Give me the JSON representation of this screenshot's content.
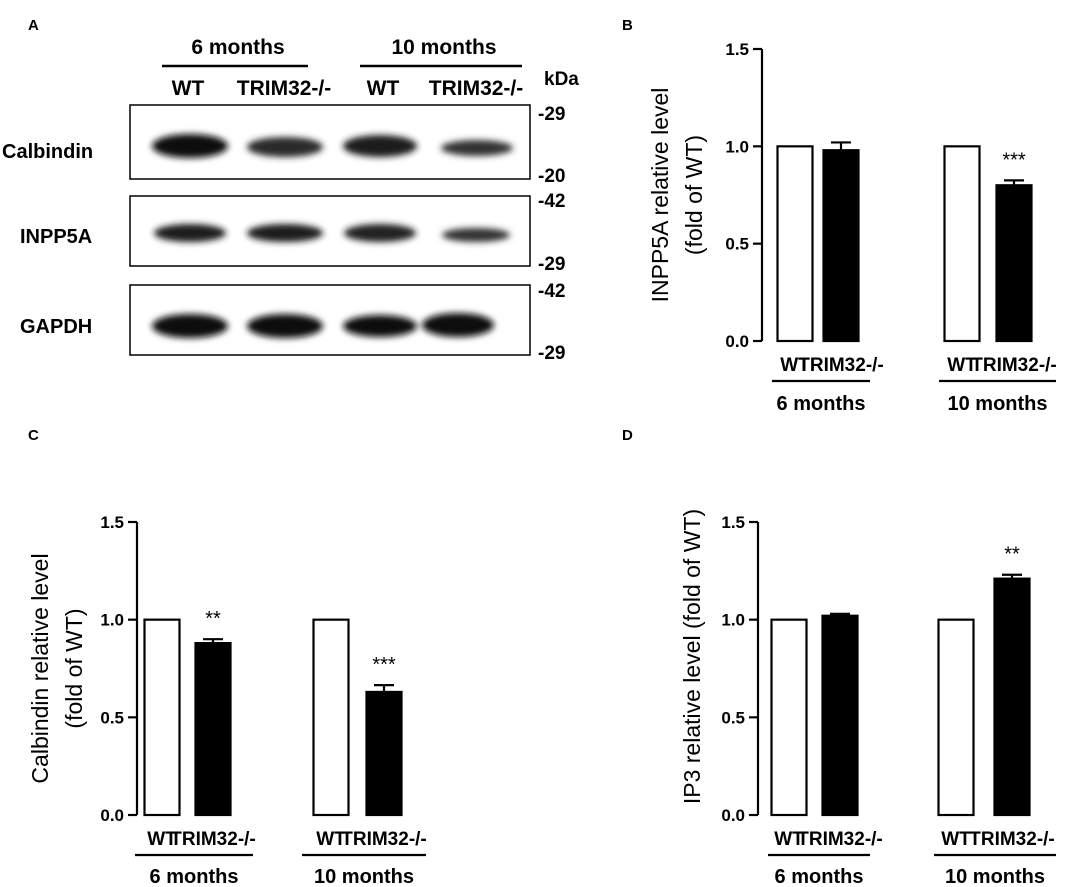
{
  "panels": {
    "a": "A",
    "b": "B",
    "c": "C",
    "d": "D"
  },
  "blot": {
    "groups": [
      "6 months",
      "10 months"
    ],
    "lanes": [
      "WT",
      "TRIM32-/-",
      "WT",
      "TRIM32-/-"
    ],
    "kda_label": "kDa",
    "bands": [
      {
        "name": "Calbindin",
        "markers": [
          "-29",
          "-20"
        ],
        "intensity": [
          1.0,
          0.78,
          0.9,
          0.62
        ]
      },
      {
        "name": "INPP5A",
        "markers": [
          "-42",
          "-29"
        ],
        "intensity": [
          1.0,
          0.95,
          0.9,
          0.75
        ]
      },
      {
        "name": "GAPDH",
        "markers": [
          "-42",
          "-29"
        ],
        "intensity": [
          1.0,
          1.0,
          0.95,
          0.95
        ]
      }
    ]
  },
  "chart_data": [
    {
      "panel": "B",
      "type": "bar",
      "ylabel_lines": [
        "INPP5A relative level",
        "(fold of WT)"
      ],
      "ylim": [
        0,
        1.5
      ],
      "yticks": [
        "0.0",
        "0.5",
        "1.0",
        "1.5"
      ],
      "groups": [
        "6 months",
        "10 months"
      ],
      "categories": [
        "WT",
        "TRIM32-/-",
        "WT",
        "TRIM32-/-"
      ],
      "values": [
        1.0,
        0.98,
        1.0,
        0.8
      ],
      "errors": [
        0,
        0.04,
        0,
        0.025
      ],
      "significance": [
        "",
        "",
        "",
        "***"
      ],
      "fills": [
        "#ffffff",
        "#000000",
        "#ffffff",
        "#000000"
      ]
    },
    {
      "panel": "C",
      "type": "bar",
      "ylabel_lines": [
        "Calbindin relative level",
        "(fold of WT)"
      ],
      "ylim": [
        0,
        1.5
      ],
      "yticks": [
        "0.0",
        "0.5",
        "1.0",
        "1.5"
      ],
      "groups": [
        "6 months",
        "10 months"
      ],
      "categories": [
        "WT",
        "TRIM32-/-",
        "WT",
        "TRIM32-/-"
      ],
      "values": [
        1.0,
        0.88,
        1.0,
        0.63
      ],
      "errors": [
        0,
        0.02,
        0,
        0.035
      ],
      "significance": [
        "",
        "**",
        "",
        "***"
      ],
      "fills": [
        "#ffffff",
        "#000000",
        "#ffffff",
        "#000000"
      ]
    },
    {
      "panel": "D",
      "type": "bar",
      "ylabel_lines": [
        "IP3 relative level (fold of WT)"
      ],
      "ylim": [
        0,
        1.5
      ],
      "yticks": [
        "0.0",
        "0.5",
        "1.0",
        "1.5"
      ],
      "groups": [
        "6 months",
        "10 months"
      ],
      "categories": [
        "WT",
        "TRIM32-/-",
        "WT",
        "TRIM32-/-"
      ],
      "values": [
        1.0,
        1.02,
        1.0,
        1.21
      ],
      "errors": [
        0,
        0.01,
        0,
        0.02
      ],
      "significance": [
        "",
        "",
        "",
        "**"
      ],
      "fills": [
        "#ffffff",
        "#000000",
        "#ffffff",
        "#000000"
      ]
    }
  ]
}
